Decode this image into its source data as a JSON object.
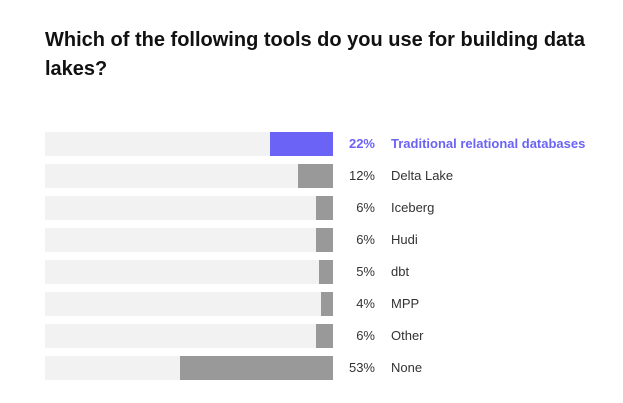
{
  "chart_data": {
    "type": "bar",
    "orientation": "horizontal",
    "title": "Which of the following tools do you use for building data lakes?",
    "categories": [
      "Traditional relational databases",
      "Delta Lake",
      "Iceberg",
      "Hudi",
      "dbt",
      "MPP",
      "Other",
      "None"
    ],
    "values": [
      22,
      12,
      6,
      6,
      5,
      4,
      6,
      53
    ],
    "value_labels": [
      "22%",
      "12%",
      "6%",
      "6%",
      "5%",
      "4%",
      "6%",
      "53%"
    ],
    "xlim": [
      0,
      100
    ],
    "unit": "%",
    "highlighted_index": 0
  },
  "colors": {
    "highlight": "#6b63f6",
    "bar": "#999999",
    "track": "#f2f2f2",
    "text": "#333333"
  }
}
